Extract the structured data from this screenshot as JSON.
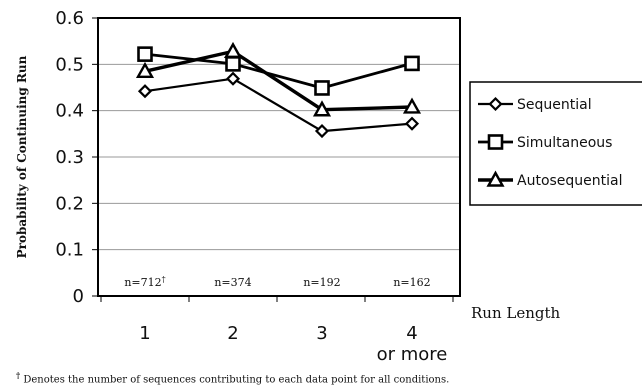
{
  "chart_data": {
    "type": "line",
    "categories": [
      "1",
      "2",
      "3",
      "4\nor more"
    ],
    "ylabel": "Probability of Continuing Run",
    "xlabel": "Run Length",
    "ylim": [
      0,
      0.6
    ],
    "yticks": [
      "0",
      "0.1",
      "0.2",
      "0.3",
      "0.4",
      "0.5",
      "0.6"
    ],
    "series": [
      {
        "name": "Sequential",
        "marker": "diamond",
        "values": [
          0.442,
          0.469,
          0.356,
          0.372
        ]
      },
      {
        "name": "Simultaneous",
        "marker": "square",
        "values": [
          0.522,
          0.501,
          0.449,
          0.502
        ]
      },
      {
        "name": "Autosequential",
        "marker": "triangle",
        "values": [
          0.485,
          0.528,
          0.402,
          0.408
        ]
      }
    ],
    "n_labels": [
      "n=712",
      "n=374",
      "n=192",
      "n=162"
    ],
    "n_label_first_marker": "†",
    "grid": true,
    "legend_position": "right"
  },
  "footnote": {
    "marker": "†",
    "text": "Denotes the number of sequences contributing to each data point for all conditions."
  }
}
